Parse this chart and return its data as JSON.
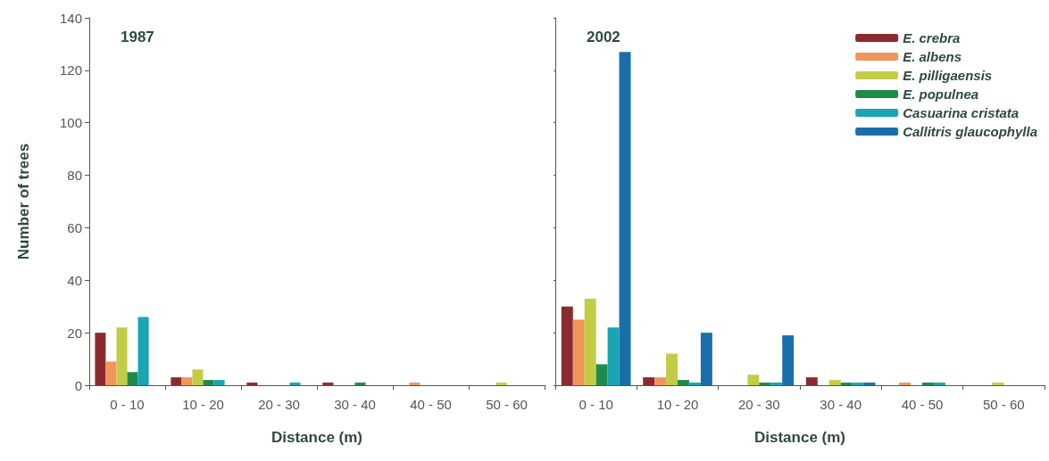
{
  "chart_data": [
    {
      "type": "bar",
      "title": "1987",
      "xlabel": "Distance (m)",
      "ylabel": "Number of trees",
      "categories": [
        "0 - 10",
        "10 - 20",
        "20 - 30",
        "30 - 40",
        "40 - 50",
        "50 - 60"
      ],
      "ylim": [
        0,
        140
      ],
      "yticks": [
        0,
        20,
        40,
        60,
        80,
        100,
        120,
        140
      ],
      "grid": false,
      "legend": false,
      "series": [
        {
          "color": "#8b2a2e",
          "values": [
            20,
            3,
            1,
            1,
            0,
            0
          ]
        },
        {
          "color": "#f0955a",
          "values": [
            9,
            3,
            0,
            0,
            1,
            0
          ]
        },
        {
          "color": "#c3cc45",
          "values": [
            22,
            6,
            0,
            0,
            0,
            1
          ]
        },
        {
          "color": "#1f8a4c",
          "values": [
            5,
            2,
            0,
            1,
            0,
            0
          ]
        },
        {
          "color": "#1aa5b5",
          "values": [
            26,
            2,
            1,
            0,
            0,
            0
          ]
        },
        {
          "color": "#1a6faa",
          "values": [
            0,
            0,
            0,
            0,
            0,
            0
          ]
        }
      ]
    },
    {
      "type": "bar",
      "title": "2002",
      "xlabel": "Distance (m)",
      "categories": [
        "0 - 10",
        "10 - 20",
        "20 - 30",
        "30 - 40",
        "40 - 50",
        "50 - 60"
      ],
      "ylim": [
        0,
        140
      ],
      "yticks": [
        0,
        20,
        40,
        60,
        80,
        100,
        120,
        140
      ],
      "grid": false,
      "legend": "top right",
      "tick_labels": "x",
      "series": [
        {
          "name": "E. crebra",
          "color": "#8b2a2e",
          "values": [
            30,
            3,
            0,
            3,
            0,
            0
          ]
        },
        {
          "name": "E. albens",
          "color": "#f0955a",
          "values": [
            25,
            3,
            0,
            0,
            1,
            0
          ]
        },
        {
          "name": "E. pilligaensis",
          "color": "#c3cc45",
          "values": [
            33,
            12,
            4,
            2,
            0,
            1
          ]
        },
        {
          "name": "E. populnea",
          "color": "#1f8a4c",
          "values": [
            8,
            2,
            1,
            1,
            1,
            0
          ]
        },
        {
          "name": "Casuarina cristata",
          "color": "#1aa5b5",
          "values": [
            22,
            1,
            1,
            1,
            1,
            0
          ]
        },
        {
          "name": "Callitris glaucophylla",
          "color": "#1a6faa",
          "values": [
            127,
            20,
            19,
            1,
            0,
            0
          ]
        }
      ]
    }
  ]
}
